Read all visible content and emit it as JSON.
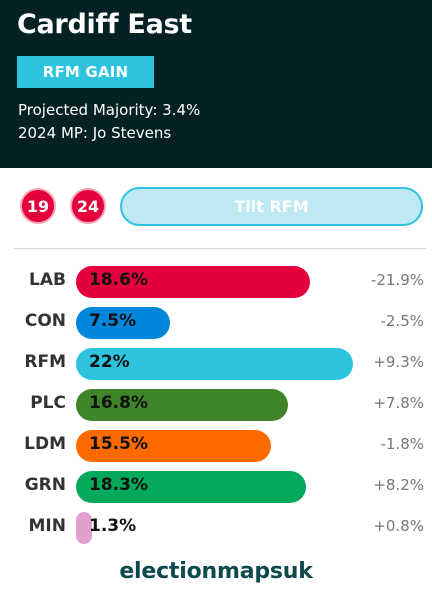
{
  "header": {
    "title": "Cardiff East",
    "badge": "RFM GAIN",
    "projected_majority": "Projected Majority: 3.4%",
    "mp_line": "2024 MP: Jo Stevens"
  },
  "controls": {
    "circle_1": "19",
    "circle_2": "24",
    "tilt_label": "Tilt RFM"
  },
  "results": [
    {
      "party": "LAB",
      "share": 18.6,
      "share_label": "18.6%",
      "change": "-21.9%",
      "color": "#e4003b"
    },
    {
      "party": "CON",
      "share": 7.5,
      "share_label": "7.5%",
      "change": "-2.5%",
      "color": "#0087dc"
    },
    {
      "party": "RFM",
      "share": 22,
      "share_label": "22%",
      "change": "+9.3%",
      "color": "#2ec4e0"
    },
    {
      "party": "PLC",
      "share": 16.8,
      "share_label": "16.8%",
      "change": "+7.8%",
      "color": "#3f8428"
    },
    {
      "party": "LDM",
      "share": 15.5,
      "share_label": "15.5%",
      "change": "-1.8%",
      "color": "#ff6a00"
    },
    {
      "party": "GRN",
      "share": 18.3,
      "share_label": "18.3%",
      "change": "+8.2%",
      "color": "#02a95b"
    },
    {
      "party": "MIN",
      "share": 1.3,
      "share_label": "1.3%",
      "change": "+0.8%",
      "color": "#e0a0cc"
    }
  ],
  "footer": {
    "brand": "electionmapsuk"
  },
  "colors": {
    "header_bg": "#062126",
    "accent": "#2ec4e0",
    "seat_circle": "#e4003b"
  }
}
